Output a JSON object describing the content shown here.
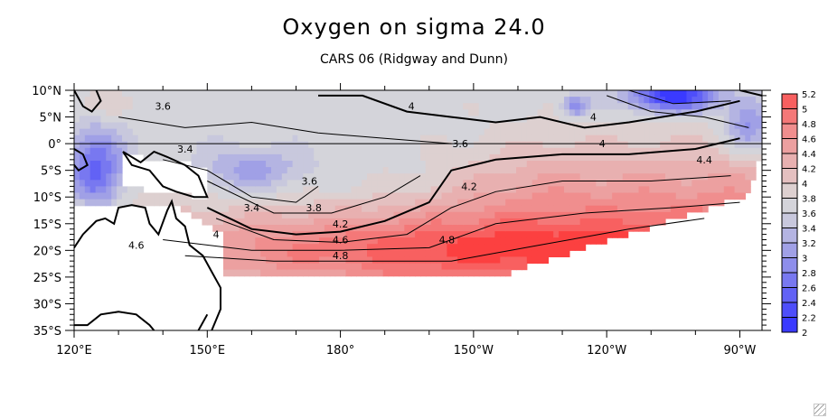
{
  "title": "Oxygen on sigma 24.0",
  "subtitle": "CARS 06 (Ridgway and Dunn)",
  "chart_data": {
    "type": "heatmap",
    "title": "Oxygen on sigma 24.0",
    "subtitle": "CARS 06 (Ridgway and Dunn)",
    "variable": "Oxygen",
    "xlabel": "",
    "ylabel": "",
    "lon_range": [
      120,
      275
    ],
    "lat_range": [
      -35,
      10
    ],
    "x_ticks": [
      {
        "lon": 120,
        "label": "120°E"
      },
      {
        "lon": 150,
        "label": "150°E"
      },
      {
        "lon": 180,
        "label": "180°"
      },
      {
        "lon": 210,
        "label": "150°W"
      },
      {
        "lon": 240,
        "label": "120°W"
      },
      {
        "lon": 270,
        "label": "90°W"
      }
    ],
    "y_ticks": [
      {
        "lat": 10,
        "label": "10°N"
      },
      {
        "lat": 5,
        "label": "5°N"
      },
      {
        "lat": 0,
        "label": "0°"
      },
      {
        "lat": -5,
        "label": "5°S"
      },
      {
        "lat": -10,
        "label": "10°S"
      },
      {
        "lat": -15,
        "label": "15°S"
      },
      {
        "lat": -20,
        "label": "20°S"
      },
      {
        "lat": -25,
        "label": "25°S"
      },
      {
        "lat": -30,
        "label": "30°S"
      },
      {
        "lat": -35,
        "label": "35°S"
      }
    ],
    "colorbar": {
      "levels": [
        "2",
        "2.2",
        "2.4",
        "2.6",
        "2.8",
        "3",
        "3.2",
        "3.4",
        "3.6",
        "3.8",
        "4",
        "4.2",
        "4.4",
        "4.6",
        "4.8",
        "5",
        "5.2"
      ],
      "colors": [
        "#3a3aff",
        "#4e4efa",
        "#6262f5",
        "#7878f0",
        "#8e8eeb",
        "#a0a0e6",
        "#b4b4e2",
        "#c8c8dd",
        "#d4d4da",
        "#ddd0d0",
        "#e4c0c0",
        "#e8b0b0",
        "#eca0a0",
        "#f08e8e",
        "#f47878",
        "#f86060",
        "#fc4040"
      ],
      "min": 2,
      "max": 5.2,
      "step": 0.2
    },
    "contour_labels": [
      {
        "text": "3.6",
        "lon": 140,
        "lat": 7
      },
      {
        "text": "3.4",
        "lon": 145,
        "lat": -1
      },
      {
        "text": "3.6",
        "lon": 173,
        "lat": -7
      },
      {
        "text": "3.4",
        "lon": 160,
        "lat": -12
      },
      {
        "text": "3.8",
        "lon": 174,
        "lat": -12
      },
      {
        "text": "4",
        "lon": 152,
        "lat": -17
      },
      {
        "text": "4.2",
        "lon": 180,
        "lat": -15
      },
      {
        "text": "4.6",
        "lon": 180,
        "lat": -18
      },
      {
        "text": "4.8",
        "lon": 180,
        "lat": -21
      },
      {
        "text": "4.6",
        "lon": 134,
        "lat": -19
      },
      {
        "text": "4.8",
        "lon": 204,
        "lat": -18
      },
      {
        "text": "4",
        "lon": 196,
        "lat": 7
      },
      {
        "text": "3.6",
        "lon": 207,
        "lat": 0
      },
      {
        "text": "4.2",
        "lon": 209,
        "lat": -8
      },
      {
        "text": "4",
        "lon": 237,
        "lat": 5
      },
      {
        "text": "4",
        "lon": 239,
        "lat": 0
      },
      {
        "text": "4.4",
        "lon": 262,
        "lat": -3
      }
    ],
    "grid": false,
    "legend_position": "right"
  }
}
